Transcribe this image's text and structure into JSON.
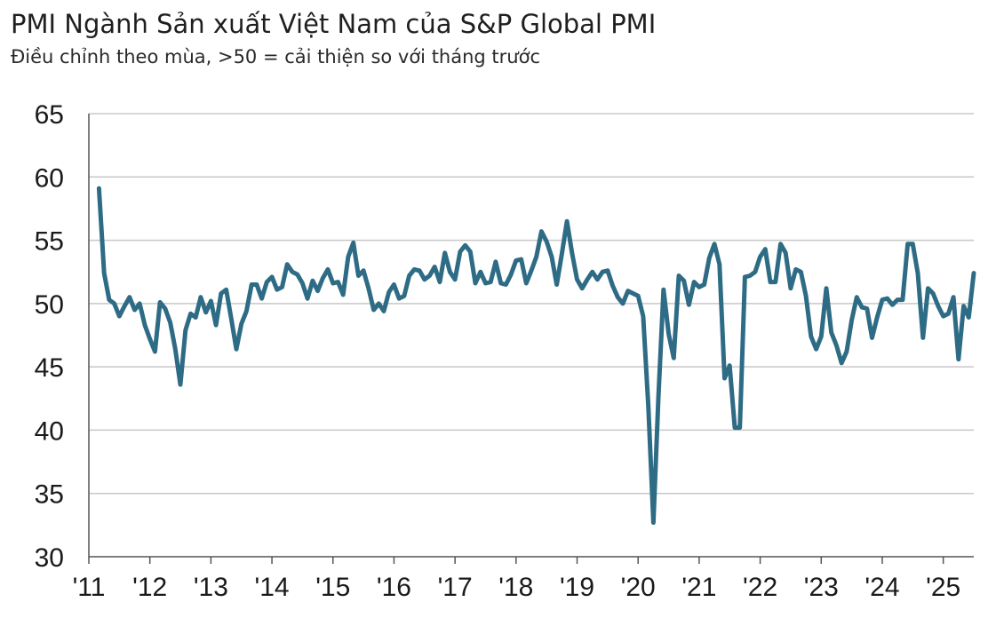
{
  "title": "PMI Ngành Sản xuất Việt Nam của S&P Global PMI",
  "subtitle": "Điều chỉnh theo mùa, >50 = cải thiện so với tháng trước",
  "colors": {
    "line": "#2e6b85",
    "grid": "#c8c8c8",
    "axis": "#555555"
  },
  "chart_data": {
    "type": "line",
    "title": "PMI Ngành Sản xuất Việt Nam của S&P Global PMI",
    "subtitle": "Điều chỉnh theo mùa, >50 = cải thiện so với tháng trước",
    "xlabel": "",
    "ylabel": "",
    "ylim": [
      30,
      65
    ],
    "yticks": [
      30,
      35,
      40,
      45,
      50,
      55,
      60,
      65
    ],
    "xlim": [
      "2011-01",
      "2025-07"
    ],
    "xticks": [
      "2011-01",
      "2012-01",
      "2013-01",
      "2014-01",
      "2015-01",
      "2016-01",
      "2017-01",
      "2018-01",
      "2019-01",
      "2020-01",
      "2021-01",
      "2022-01",
      "2023-01",
      "2024-01",
      "2025-01"
    ],
    "xtick_labels": [
      "'11",
      "'12",
      "'13",
      "'14",
      "'15",
      "'16",
      "'17",
      "'18",
      "'19",
      "'20",
      "'21",
      "'22",
      "'23",
      "'24",
      "'25"
    ],
    "grid": "horizontal",
    "start": "2011-03",
    "series": [
      {
        "values": [
          59.1,
          52.4,
          50.3,
          50.0,
          49.0,
          49.8,
          50.5,
          49.5,
          50.0,
          48.3,
          47.2,
          46.2,
          50.1,
          49.6,
          48.5,
          46.4,
          43.6,
          47.9,
          49.2,
          48.9,
          50.5,
          49.3,
          50.2,
          48.3,
          50.8,
          51.1,
          48.8,
          46.4,
          48.4,
          49.4,
          51.5,
          51.5,
          50.4,
          51.7,
          52.1,
          51.1,
          51.3,
          53.1,
          52.5,
          52.3,
          51.6,
          50.4,
          51.8,
          51.0,
          52.0,
          52.7,
          51.6,
          51.7,
          50.7,
          53.7,
          54.8,
          52.2,
          52.6,
          51.2,
          49.5,
          50.0,
          49.4,
          50.9,
          51.5,
          50.4,
          50.6,
          52.2,
          52.7,
          52.6,
          51.9,
          52.2,
          52.9,
          51.7,
          54.0,
          52.5,
          51.9,
          54.1,
          54.6,
          54.1,
          51.6,
          52.5,
          51.6,
          51.7,
          53.3,
          51.6,
          51.5,
          52.3,
          53.4,
          53.5,
          51.6,
          52.6,
          53.7,
          55.7,
          54.9,
          53.7,
          51.5,
          53.9,
          56.5,
          54.0,
          51.9,
          51.2,
          51.9,
          52.5,
          51.9,
          52.5,
          52.6,
          51.4,
          50.5,
          50.0,
          51.0,
          50.8,
          50.6,
          49.0,
          41.9,
          32.7,
          42.7,
          51.1,
          47.6,
          45.7,
          52.2,
          51.8,
          49.9,
          51.7,
          51.3,
          51.5,
          53.6,
          54.7,
          53.1,
          44.1,
          45.1,
          40.2,
          40.2,
          52.1,
          52.2,
          52.5,
          53.7,
          54.3,
          51.7,
          51.7,
          54.7,
          54.0,
          51.2,
          52.7,
          52.5,
          50.6,
          47.4,
          46.4,
          47.4,
          51.2,
          47.7,
          46.7,
          45.3,
          46.2,
          48.7,
          50.5,
          49.7,
          49.6,
          47.3,
          48.9,
          50.3,
          50.4,
          49.9,
          50.3,
          50.3,
          54.7,
          54.7,
          52.4,
          47.3,
          51.2,
          50.8,
          49.8,
          49.0,
          49.2,
          50.5,
          45.6,
          49.8,
          48.9,
          52.4
        ]
      }
    ]
  }
}
